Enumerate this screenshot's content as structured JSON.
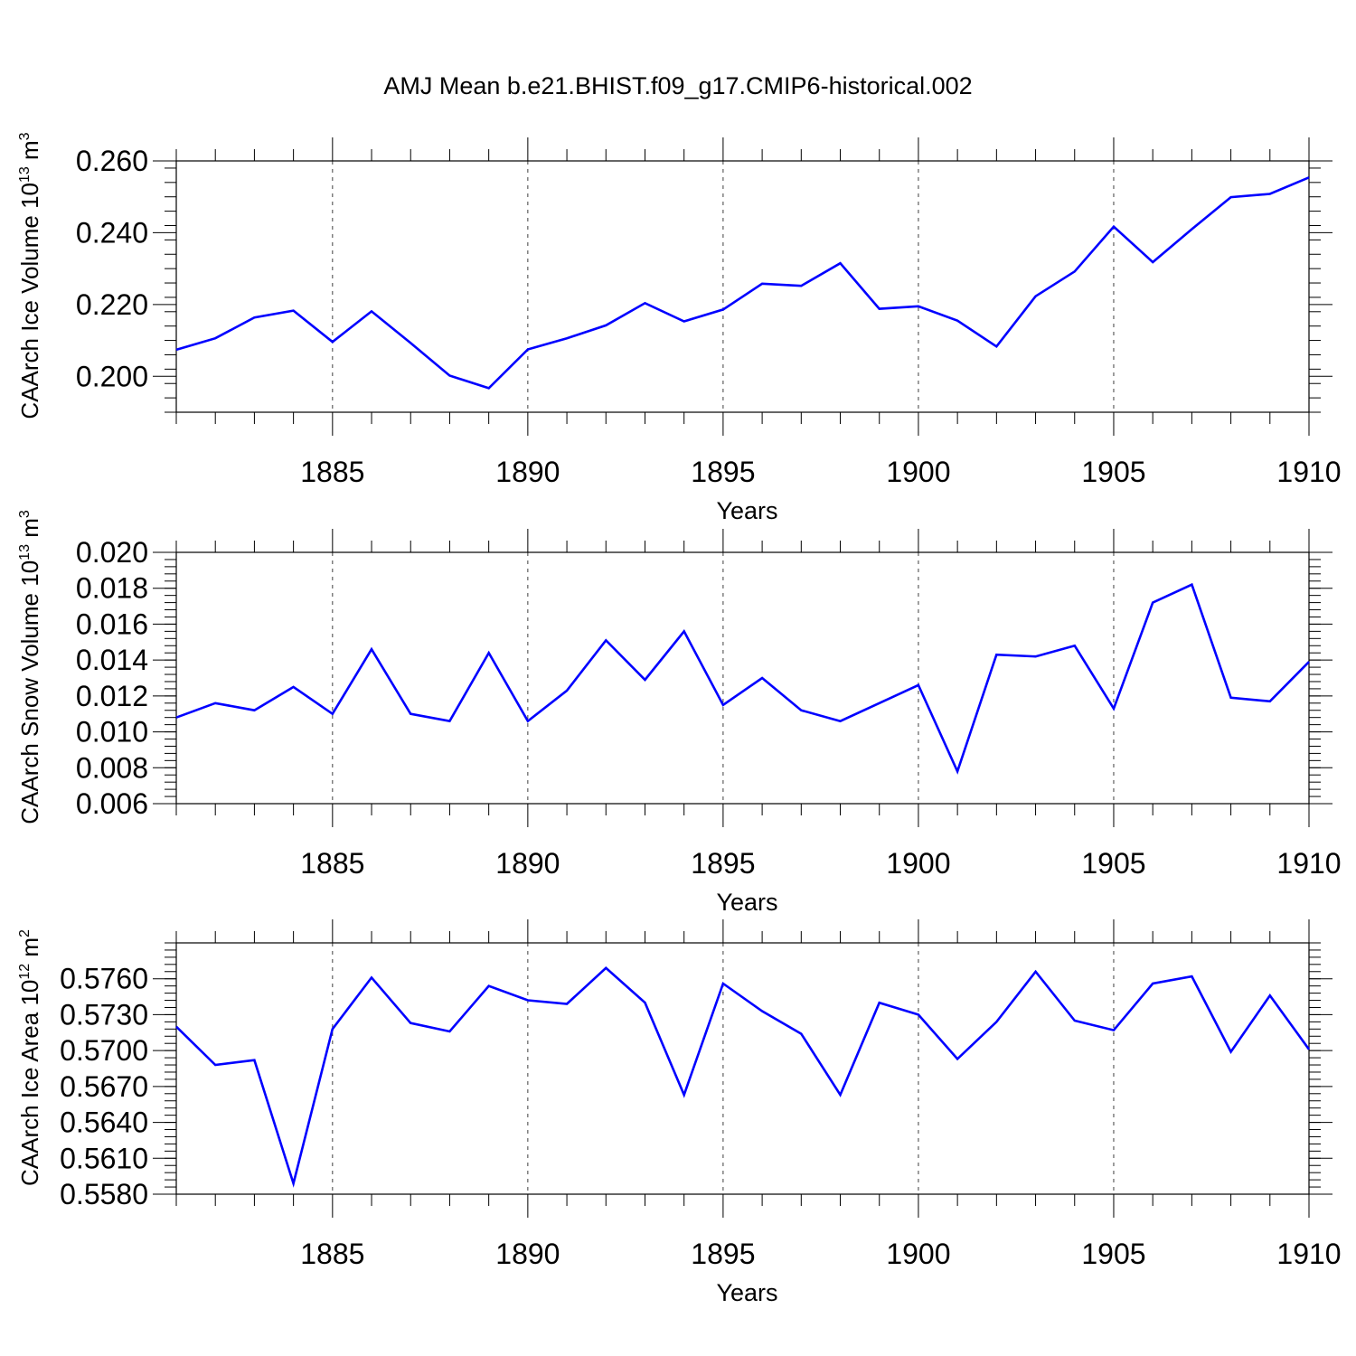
{
  "title": "AMJ Mean b.e21.BHIST.f09_g17.CMIP6-historical.002",
  "colors": {
    "line": "#0000ff",
    "axis": "#000000",
    "grid": "#000000"
  },
  "chart_data": [
    {
      "type": "line",
      "ylabel": "CAArch Ice Volume 10",
      "ylabel_sup": "13",
      "ylabel_unit": " m",
      "ylabel_unit_sup": "3",
      "xlabel": "Years",
      "xlim": [
        1881,
        1910
      ],
      "ylim": [
        0.19,
        0.26
      ],
      "xticks": [
        1885,
        1890,
        1895,
        1900,
        1905,
        1910
      ],
      "yticks": [
        0.2,
        0.22,
        0.24,
        0.26
      ],
      "ytick_labels": [
        "0.200",
        "0.220",
        "0.240",
        "0.260"
      ],
      "yminor_step": 0.004,
      "grid": "vertical dashed at major x ticks",
      "x": [
        1881,
        1882,
        1883,
        1884,
        1885,
        1886,
        1887,
        1888,
        1889,
        1890,
        1891,
        1892,
        1893,
        1894,
        1895,
        1896,
        1897,
        1898,
        1899,
        1900,
        1901,
        1902,
        1903,
        1904,
        1905,
        1906,
        1907,
        1908,
        1909,
        1910
      ],
      "values": [
        0.2074,
        0.2106,
        0.2164,
        0.2183,
        0.2096,
        0.2181,
        0.2093,
        0.2002,
        0.1967,
        0.2075,
        0.2106,
        0.2142,
        0.2204,
        0.2153,
        0.2186,
        0.2258,
        0.2252,
        0.2315,
        0.2188,
        0.2195,
        0.2155,
        0.2083,
        0.2223,
        0.2292,
        0.2417,
        0.2318,
        0.241,
        0.2499,
        0.2508,
        0.2554
      ]
    },
    {
      "type": "line",
      "ylabel": "CAArch Snow Volume 10",
      "ylabel_sup": "13",
      "ylabel_unit": " m",
      "ylabel_unit_sup": "3",
      "xlabel": "Years",
      "xlim": [
        1881,
        1910
      ],
      "ylim": [
        0.006,
        0.02
      ],
      "xticks": [
        1885,
        1890,
        1895,
        1900,
        1905,
        1910
      ],
      "yticks": [
        0.006,
        0.008,
        0.01,
        0.012,
        0.014,
        0.016,
        0.018,
        0.02
      ],
      "ytick_labels": [
        "0.006",
        "0.008",
        "0.010",
        "0.012",
        "0.014",
        "0.016",
        "0.018",
        "0.020"
      ],
      "yminor_step": 0.0004,
      "grid": "vertical dashed at major x ticks",
      "x": [
        1881,
        1882,
        1883,
        1884,
        1885,
        1886,
        1887,
        1888,
        1889,
        1890,
        1891,
        1892,
        1893,
        1894,
        1895,
        1896,
        1897,
        1898,
        1899,
        1900,
        1901,
        1902,
        1903,
        1904,
        1905,
        1906,
        1907,
        1908,
        1909,
        1910
      ],
      "values": [
        0.0108,
        0.0116,
        0.0112,
        0.0125,
        0.011,
        0.0146,
        0.011,
        0.0106,
        0.0144,
        0.0106,
        0.0123,
        0.0151,
        0.0129,
        0.0156,
        0.0115,
        0.013,
        0.0112,
        0.0106,
        0.0116,
        0.0126,
        0.0078,
        0.0143,
        0.0142,
        0.0148,
        0.0113,
        0.0172,
        0.0182,
        0.0119,
        0.0117,
        0.0139
      ]
    },
    {
      "type": "line",
      "ylabel": "CAArch Ice Area 10",
      "ylabel_sup": "12",
      "ylabel_unit": " m",
      "ylabel_unit_sup": "2",
      "xlabel": "Years",
      "xlim": [
        1881,
        1910
      ],
      "ylim": [
        0.558,
        0.579
      ],
      "xticks": [
        1885,
        1890,
        1895,
        1900,
        1905,
        1910
      ],
      "yticks": [
        0.558,
        0.561,
        0.564,
        0.567,
        0.57,
        0.573,
        0.576
      ],
      "ytick_labels": [
        "0.5580",
        "0.5610",
        "0.5640",
        "0.5670",
        "0.5700",
        "0.5730",
        "0.5760"
      ],
      "yminor_step": 0.0006,
      "grid": "vertical dashed at major x ticks",
      "x": [
        1881,
        1882,
        1883,
        1884,
        1885,
        1886,
        1887,
        1888,
        1889,
        1890,
        1891,
        1892,
        1893,
        1894,
        1895,
        1896,
        1897,
        1898,
        1899,
        1900,
        1901,
        1902,
        1903,
        1904,
        1905,
        1906,
        1907,
        1908,
        1909,
        1910
      ],
      "values": [
        0.572,
        0.5688,
        0.5692,
        0.5589,
        0.5718,
        0.5761,
        0.5723,
        0.5716,
        0.5754,
        0.5742,
        0.5739,
        0.5769,
        0.574,
        0.5663,
        0.5756,
        0.5733,
        0.5714,
        0.5663,
        0.574,
        0.573,
        0.5693,
        0.5724,
        0.5766,
        0.5725,
        0.5717,
        0.5756,
        0.5762,
        0.5699,
        0.5746,
        0.5701
      ]
    }
  ]
}
